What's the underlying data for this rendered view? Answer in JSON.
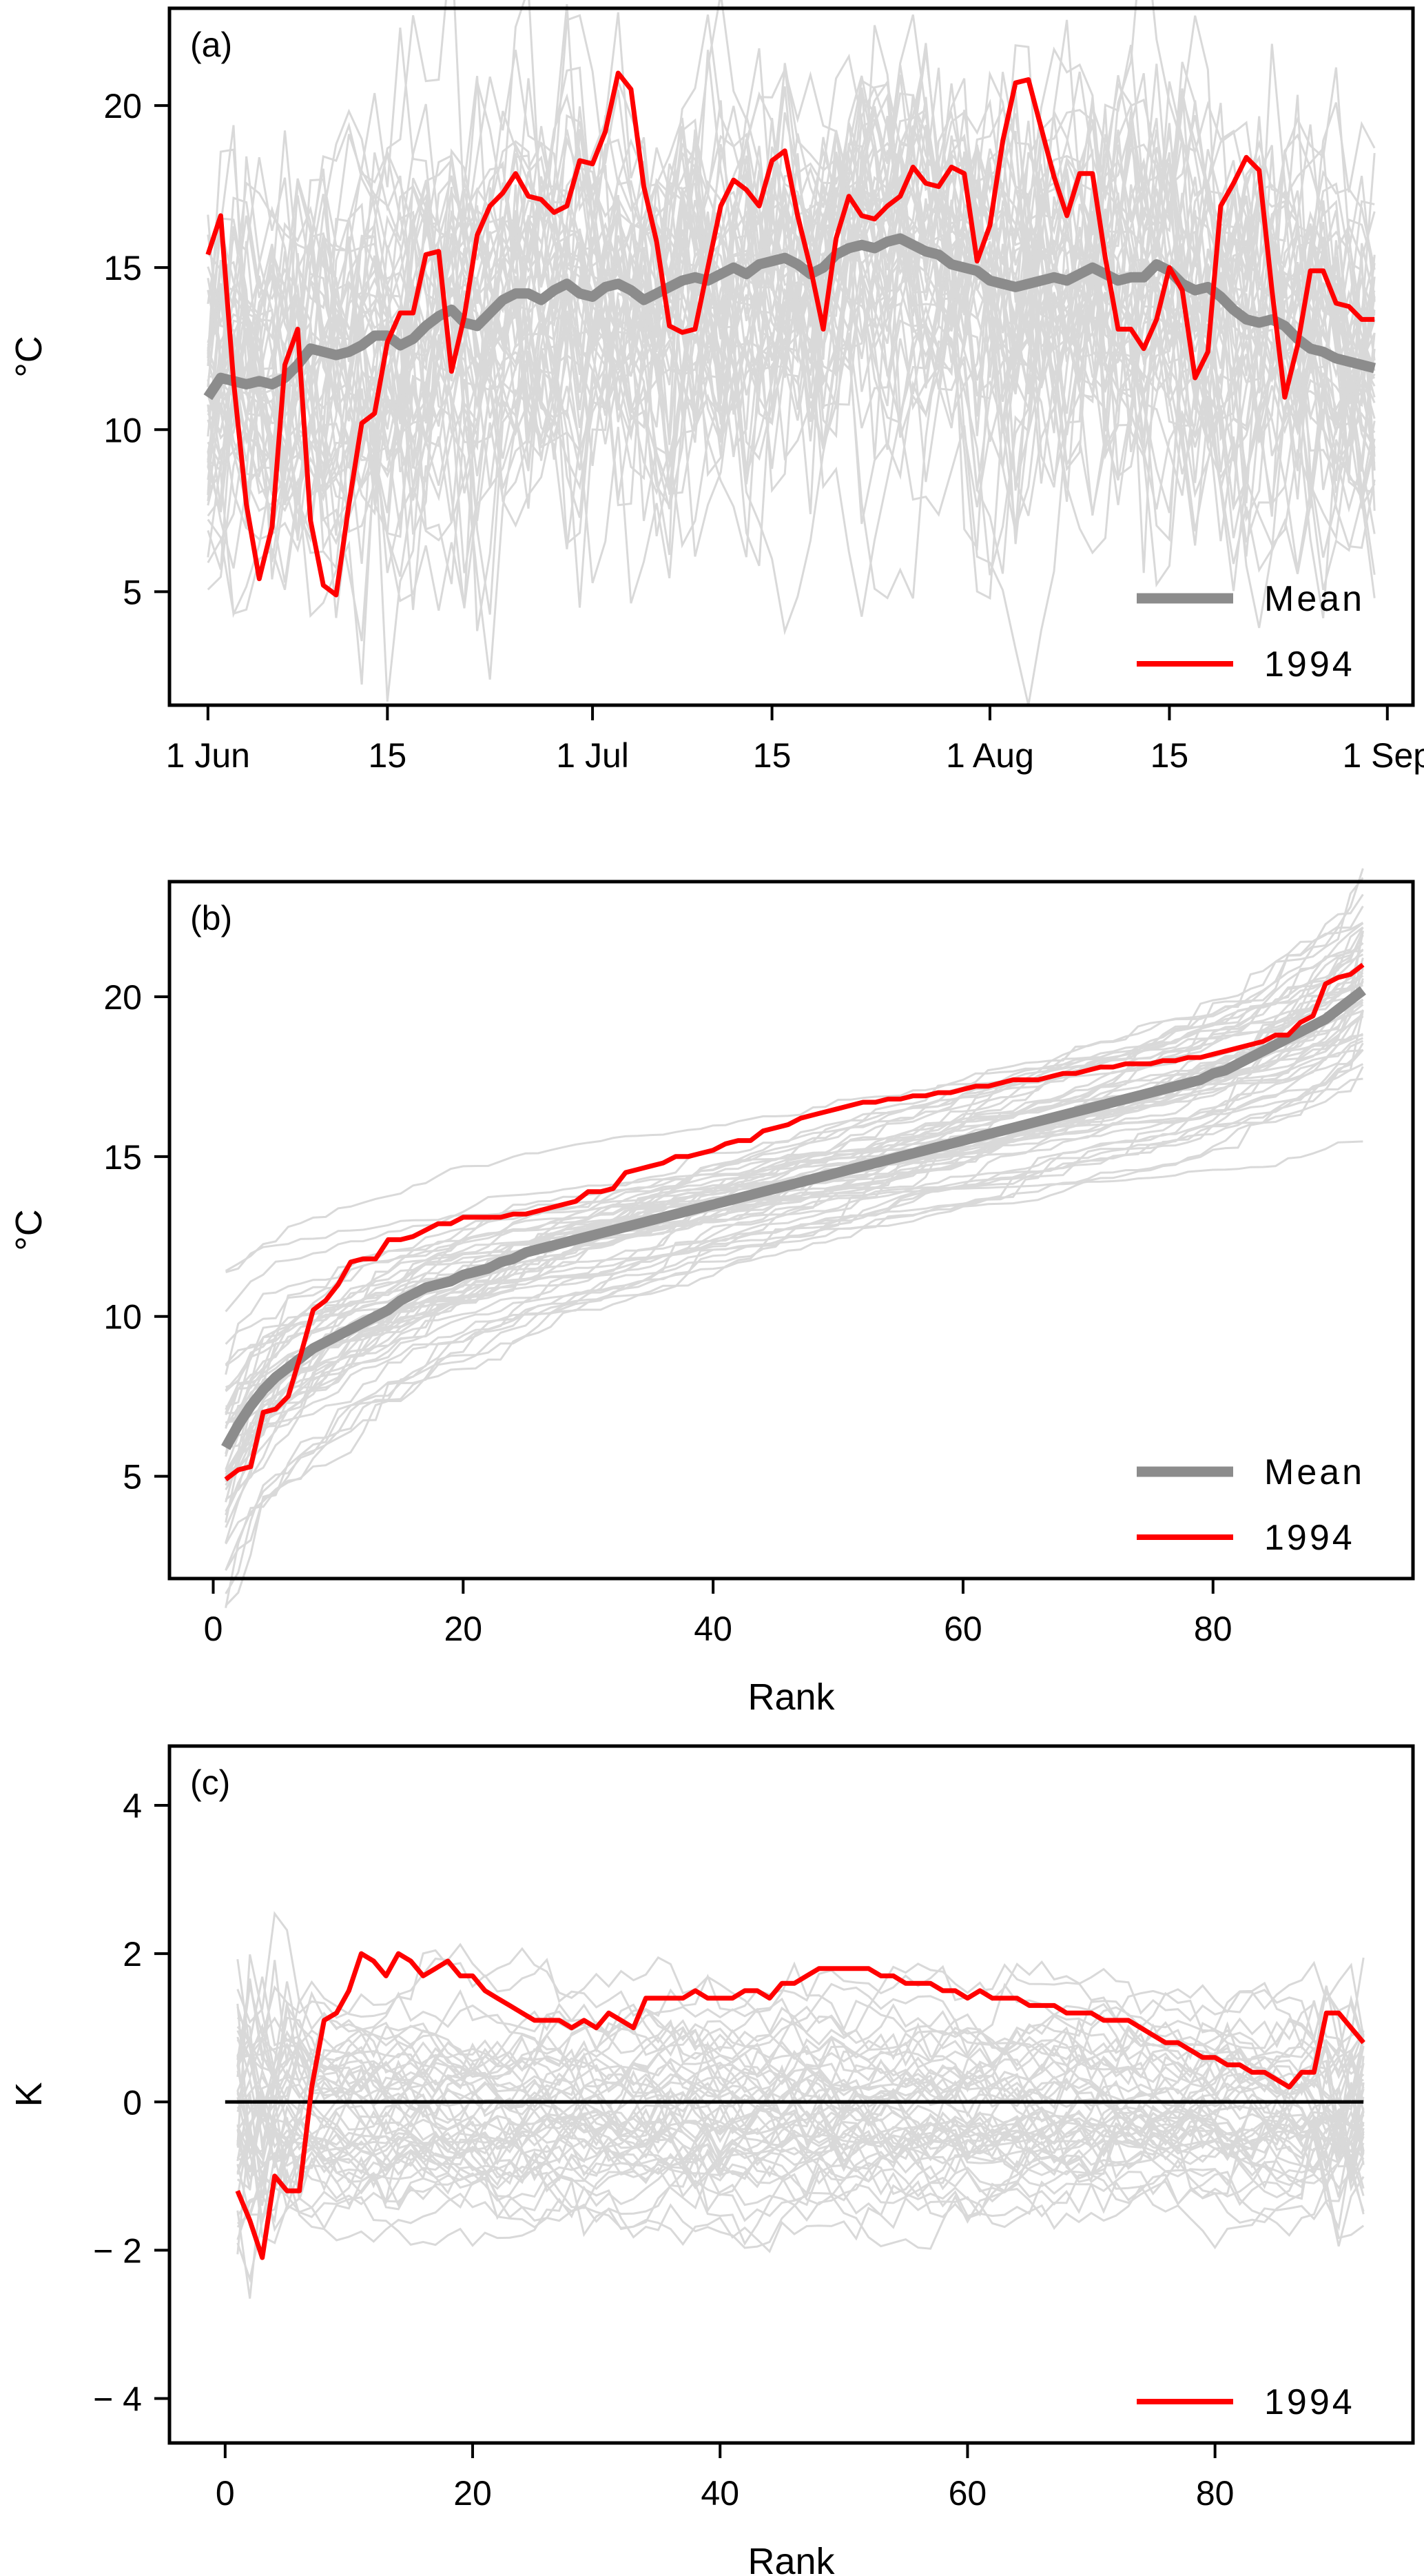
{
  "chart_data": [
    {
      "id": "a",
      "type": "line",
      "panel_label": "(a)",
      "xlabel": "",
      "ylabel": "°C",
      "x_ticks": [
        {
          "day": 1,
          "label": "1 Jun"
        },
        {
          "day": 15,
          "label": "15"
        },
        {
          "day": 31,
          "label": "1 Jul"
        },
        {
          "day": 45,
          "label": "15"
        },
        {
          "day": 62,
          "label": "1 Aug"
        },
        {
          "day": 76,
          "label": "15"
        },
        {
          "day": 93,
          "label": "1 Sep"
        }
      ],
      "xlim": [
        -2,
        95
      ],
      "y_ticks": [
        5,
        10,
        15,
        20
      ],
      "ylim": [
        1.5,
        23
      ],
      "legend": {
        "position": "bottom-right",
        "entries": [
          {
            "label": "Mean",
            "color": "#8c8c8c"
          },
          {
            "label": "1994",
            "color": "#ff0000"
          }
        ]
      },
      "series": [
        {
          "name": "Mean",
          "color": "#8c8c8c",
          "values": [
            11.0,
            11.6,
            11.5,
            11.4,
            11.5,
            11.4,
            11.6,
            12.0,
            12.5,
            12.4,
            12.3,
            12.4,
            12.6,
            12.9,
            12.9,
            12.6,
            12.8,
            13.2,
            13.5,
            13.7,
            13.3,
            13.2,
            13.6,
            14.0,
            14.2,
            14.2,
            14.0,
            14.3,
            14.5,
            14.2,
            14.1,
            14.4,
            14.5,
            14.3,
            14.0,
            14.2,
            14.4,
            14.6,
            14.7,
            14.6,
            14.8,
            15.0,
            14.8,
            15.1,
            15.2,
            15.3,
            15.1,
            14.8,
            15.0,
            15.4,
            15.6,
            15.7,
            15.6,
            15.8,
            15.9,
            15.7,
            15.5,
            15.4,
            15.1,
            15.0,
            14.9,
            14.6,
            14.5,
            14.4,
            14.5,
            14.6,
            14.7,
            14.6,
            14.8,
            15.0,
            14.8,
            14.6,
            14.7,
            14.7,
            15.1,
            14.9,
            14.5,
            14.3,
            14.4,
            14.1,
            13.7,
            13.4,
            13.3,
            13.4,
            13.2,
            12.8,
            12.5,
            12.4,
            12.2,
            12.1,
            12.0,
            11.9
          ]
        },
        {
          "name": "1994",
          "color": "#ff0000",
          "values": [
            15.4,
            16.6,
            11.5,
            7.7,
            5.4,
            7.0,
            12.0,
            13.1,
            7.2,
            5.2,
            4.9,
            7.7,
            10.2,
            10.5,
            12.7,
            13.6,
            13.6,
            15.4,
            15.5,
            11.8,
            13.5,
            16.0,
            16.9,
            17.3,
            17.9,
            17.2,
            17.1,
            16.7,
            16.9,
            18.3,
            18.2,
            19.2,
            21.0,
            20.5,
            17.5,
            15.8,
            13.2,
            13.0,
            13.1,
            15.0,
            16.9,
            17.7,
            17.4,
            16.9,
            18.3,
            18.6,
            16.6,
            15.0,
            13.1,
            15.9,
            17.2,
            16.6,
            16.5,
            16.9,
            17.2,
            18.1,
            17.6,
            17.5,
            18.1,
            17.9,
            15.2,
            16.3,
            18.9,
            20.7,
            20.8,
            19.3,
            17.8,
            16.6,
            17.9,
            17.9,
            15.3,
            13.1,
            13.1,
            12.5,
            13.4,
            15.0,
            14.3,
            11.6,
            12.4,
            16.9,
            17.6,
            18.4,
            18.0,
            14.3,
            11.0,
            12.6,
            14.9,
            14.9,
            13.9,
            13.8,
            13.4,
            13.4
          ]
        }
      ],
      "background_series_count": 50,
      "background_color": "#d9d9d9"
    },
    {
      "id": "b",
      "type": "line",
      "panel_label": "(b)",
      "xlabel": "Rank",
      "ylabel": "°C",
      "x_ticks": [
        0,
        20,
        40,
        60,
        80
      ],
      "xlim": [
        -3.5,
        96
      ],
      "y_ticks": [
        5,
        10,
        15,
        20
      ],
      "ylim": [
        1.8,
        23.6
      ],
      "legend": {
        "position": "bottom-right",
        "entries": [
          {
            "label": "Mean",
            "color": "#8c8c8c"
          },
          {
            "label": "1994",
            "color": "#ff0000"
          }
        ]
      },
      "series": [
        {
          "name": "Mean",
          "color": "#8c8c8c",
          "values": [
            5.9,
            6.6,
            7.2,
            7.7,
            8.1,
            8.4,
            8.7,
            9.0,
            9.2,
            9.4,
            9.6,
            9.8,
            10.0,
            10.2,
            10.5,
            10.7,
            10.9,
            11.0,
            11.1,
            11.3,
            11.4,
            11.5,
            11.7,
            11.8,
            12.0,
            12.1,
            12.2,
            12.3,
            12.4,
            12.5,
            12.6,
            12.7,
            12.8,
            12.9,
            13.0,
            13.1,
            13.2,
            13.3,
            13.4,
            13.5,
            13.6,
            13.7,
            13.8,
            13.9,
            14.0,
            14.1,
            14.2,
            14.3,
            14.4,
            14.5,
            14.6,
            14.7,
            14.8,
            14.9,
            15.0,
            15.1,
            15.2,
            15.3,
            15.4,
            15.5,
            15.6,
            15.7,
            15.8,
            15.9,
            16.0,
            16.1,
            16.2,
            16.3,
            16.4,
            16.5,
            16.6,
            16.7,
            16.8,
            16.9,
            17.0,
            17.1,
            17.2,
            17.3,
            17.4,
            17.6,
            17.7,
            17.9,
            18.1,
            18.3,
            18.5,
            18.7,
            18.9,
            19.1,
            19.3,
            19.6,
            19.9,
            20.2
          ]
        },
        {
          "name": "1994",
          "color": "#ff0000",
          "values": [
            4.9,
            5.2,
            5.3,
            7.0,
            7.1,
            7.5,
            8.8,
            10.2,
            10.5,
            11.0,
            11.7,
            11.8,
            11.8,
            12.4,
            12.4,
            12.5,
            12.7,
            12.9,
            12.9,
            13.1,
            13.1,
            13.1,
            13.1,
            13.2,
            13.2,
            13.3,
            13.4,
            13.5,
            13.6,
            13.9,
            13.9,
            14.0,
            14.5,
            14.6,
            14.7,
            14.8,
            15.0,
            15.0,
            15.1,
            15.2,
            15.4,
            15.5,
            15.5,
            15.8,
            15.9,
            16.0,
            16.2,
            16.3,
            16.4,
            16.5,
            16.6,
            16.7,
            16.7,
            16.8,
            16.8,
            16.9,
            16.9,
            17.0,
            17.0,
            17.1,
            17.2,
            17.2,
            17.3,
            17.4,
            17.4,
            17.4,
            17.5,
            17.6,
            17.6,
            17.7,
            17.8,
            17.8,
            17.9,
            17.9,
            17.9,
            18.0,
            18.0,
            18.1,
            18.1,
            18.2,
            18.3,
            18.4,
            18.5,
            18.6,
            18.8,
            18.8,
            19.2,
            19.4,
            20.4,
            20.6,
            20.7,
            21.0
          ]
        }
      ],
      "background_series_count": 50,
      "background_color": "#d9d9d9"
    },
    {
      "id": "c",
      "type": "line",
      "panel_label": "(c)",
      "xlabel": "Rank",
      "ylabel": "K",
      "x_ticks": [
        0,
        20,
        40,
        60,
        80
      ],
      "xlim": [
        -4.5,
        96
      ],
      "y_ticks": [
        -4,
        -2,
        0,
        2,
        4
      ],
      "y_tick_labels": [
        "− 4",
        "− 2",
        "0",
        "2",
        "4"
      ],
      "ylim": [
        -4.6,
        4.8
      ],
      "reference_line": 0,
      "legend": {
        "position": "bottom-right",
        "entries": [
          {
            "label": "1994",
            "color": "#ff0000"
          }
        ]
      },
      "series": [
        {
          "name": "1994",
          "color": "#ff0000",
          "values": [
            -1.2,
            -1.6,
            -2.1,
            -1.0,
            -1.2,
            -1.2,
            0.2,
            1.1,
            1.2,
            1.5,
            2.0,
            1.9,
            1.7,
            2.0,
            1.9,
            1.7,
            1.8,
            1.9,
            1.7,
            1.7,
            1.5,
            1.4,
            1.3,
            1.2,
            1.1,
            1.1,
            1.1,
            1.0,
            1.1,
            1.0,
            1.2,
            1.1,
            1.0,
            1.4,
            1.4,
            1.4,
            1.4,
            1.5,
            1.4,
            1.4,
            1.4,
            1.5,
            1.5,
            1.4,
            1.6,
            1.6,
            1.7,
            1.8,
            1.8,
            1.8,
            1.8,
            1.8,
            1.7,
            1.7,
            1.6,
            1.6,
            1.6,
            1.5,
            1.5,
            1.4,
            1.5,
            1.4,
            1.4,
            1.4,
            1.3,
            1.3,
            1.3,
            1.2,
            1.2,
            1.2,
            1.1,
            1.1,
            1.1,
            1.0,
            0.9,
            0.8,
            0.8,
            0.7,
            0.6,
            0.6,
            0.5,
            0.5,
            0.4,
            0.4,
            0.3,
            0.2,
            0.4,
            0.4,
            1.2,
            1.2,
            1.0,
            0.8
          ]
        }
      ],
      "background_series_count": 50,
      "background_color": "#d9d9d9"
    }
  ]
}
